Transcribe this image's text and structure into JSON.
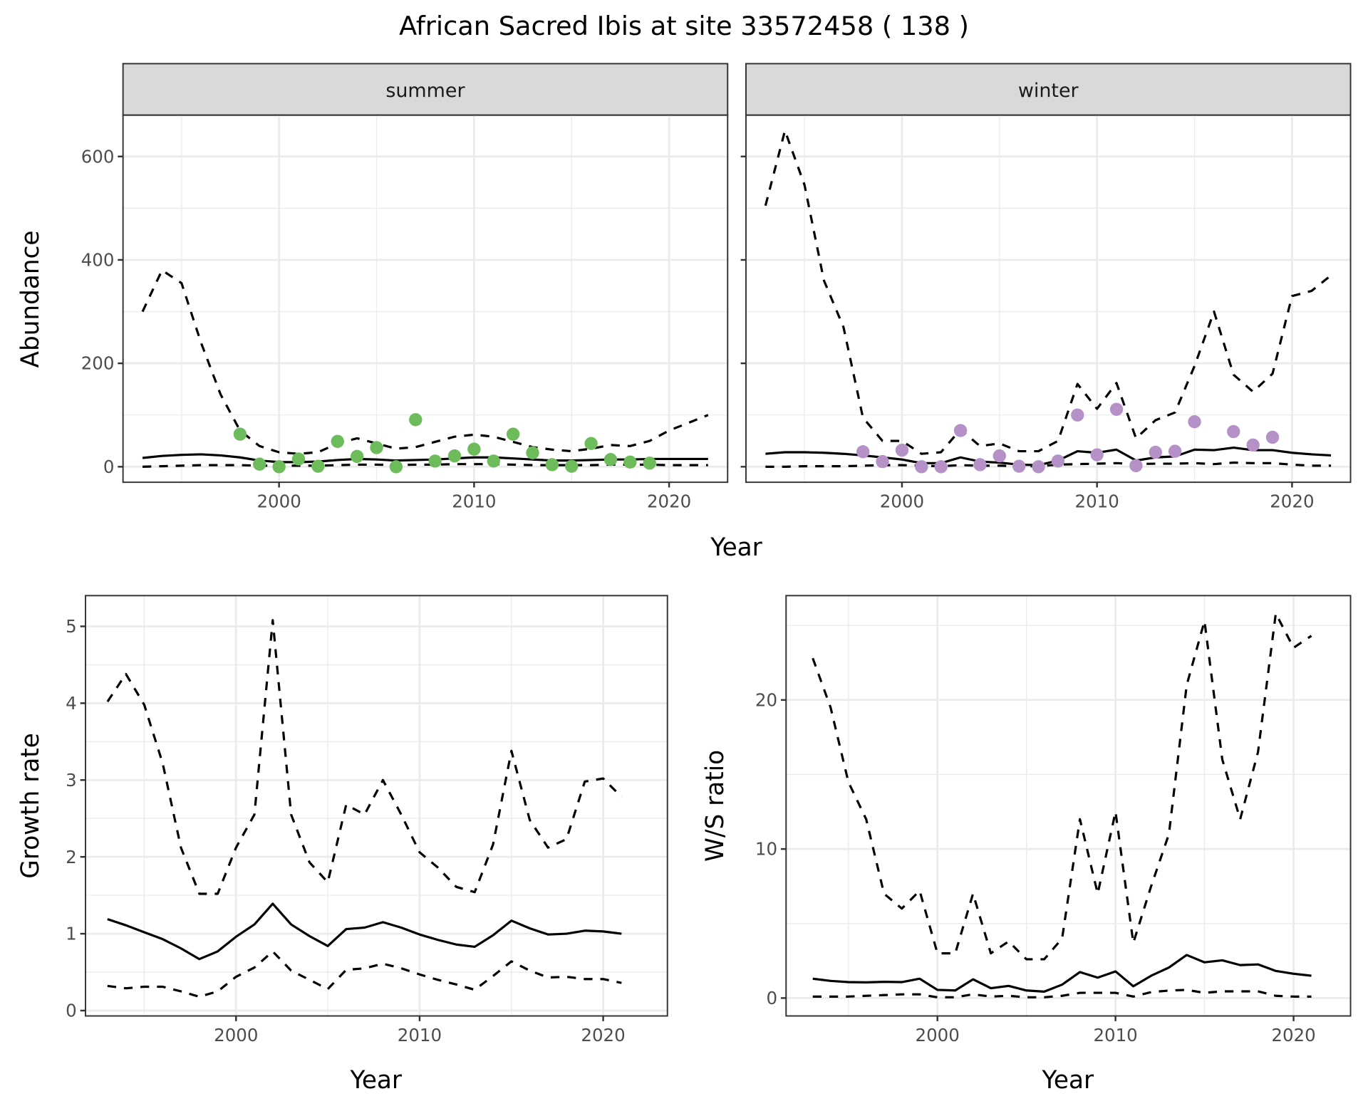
{
  "chart_data": {
    "title": "African Sacred Ibis at site 33572458 ( 138 )",
    "panels": [
      {
        "id": "abundance-summer",
        "type": "line+scatter",
        "strip": "summer",
        "xlabel": "Year",
        "ylabel": "Abundance",
        "xlim": [
          1992,
          2023
        ],
        "ylim": [
          -30,
          680
        ],
        "xticks": [
          2000,
          2010,
          2020
        ],
        "yticks": [
          0,
          200,
          400,
          600
        ],
        "grid": true,
        "point_color": "#6dbb5b",
        "series": {
          "mean": {
            "x": [
              1993,
              1994,
              1995,
              1996,
              1997,
              1998,
              1999,
              2000,
              2001,
              2002,
              2003,
              2004,
              2005,
              2006,
              2007,
              2008,
              2009,
              2010,
              2011,
              2012,
              2013,
              2014,
              2015,
              2016,
              2017,
              2018,
              2019,
              2020,
              2021,
              2022
            ],
            "y": [
              17,
              21,
              23,
              24,
              22,
              18,
              12,
              9,
              9,
              10,
              13,
              15,
              14,
              12,
              13,
              14,
              16,
              18,
              18,
              16,
              14,
              12,
              12,
              13,
              14,
              14,
              15,
              15,
              15,
              15
            ]
          },
          "upper": {
            "x": [
              1993,
              1994,
              1995,
              1996,
              1997,
              1998,
              1999,
              2000,
              2001,
              2002,
              2003,
              2004,
              2005,
              2006,
              2007,
              2008,
              2009,
              2010,
              2011,
              2012,
              2013,
              2014,
              2015,
              2016,
              2017,
              2018,
              2019,
              2020,
              2021,
              2022
            ],
            "y": [
              300,
              380,
              355,
              240,
              140,
              70,
              40,
              28,
              25,
              28,
              45,
              55,
              45,
              35,
              38,
              48,
              58,
              62,
              58,
              48,
              38,
              33,
              30,
              35,
              42,
              40,
              50,
              70,
              85,
              100
            ]
          },
          "lower": {
            "x": [
              1993,
              1994,
              1995,
              1996,
              1997,
              1998,
              1999,
              2000,
              2001,
              2002,
              2003,
              2004,
              2005,
              2006,
              2007,
              2008,
              2009,
              2010,
              2011,
              2012,
              2013,
              2014,
              2015,
              2016,
              2017,
              2018,
              2019,
              2020,
              2021,
              2022
            ],
            "y": [
              0,
              1,
              2,
              3,
              3,
              3,
              2,
              2,
              2,
              2,
              3,
              4,
              4,
              3,
              4,
              4,
              5,
              5,
              5,
              4,
              3,
              3,
              3,
              3,
              4,
              4,
              4,
              3,
              3,
              3
            ]
          },
          "observed": {
            "x": [
              1998,
              1999,
              2000,
              2001,
              2002,
              2003,
              2004,
              2005,
              2006,
              2007,
              2008,
              2009,
              2010,
              2011,
              2012,
              2013,
              2014,
              2015,
              2016,
              2017,
              2018,
              2019
            ],
            "y": [
              63,
              5,
              0,
              15,
              1,
              49,
              20,
              37,
              0,
              91,
              11,
              21,
              34,
              11,
              63,
              27,
              4,
              1,
              45,
              14,
              9,
              7
            ]
          }
        }
      },
      {
        "id": "abundance-winter",
        "type": "line+scatter",
        "strip": "winter",
        "xlabel": "Year",
        "ylabel": "Abundance",
        "xlim": [
          1992,
          2023
        ],
        "ylim": [
          -30,
          680
        ],
        "xticks": [
          2000,
          2010,
          2020
        ],
        "yticks": [
          0,
          200,
          400,
          600
        ],
        "grid": true,
        "point_color": "#b591c8",
        "series": {
          "mean": {
            "x": [
              1993,
              1994,
              1995,
              1996,
              1997,
              1998,
              1999,
              2000,
              2001,
              2002,
              2003,
              2004,
              2005,
              2006,
              2007,
              2008,
              2009,
              2010,
              2011,
              2012,
              2013,
              2014,
              2015,
              2016,
              2017,
              2018,
              2019,
              2020,
              2021,
              2022
            ],
            "y": [
              25,
              28,
              28,
              27,
              25,
              22,
              18,
              14,
              7,
              7,
              18,
              10,
              8,
              4,
              3,
              12,
              30,
              27,
              33,
              12,
              18,
              20,
              33,
              32,
              37,
              32,
              32,
              27,
              24,
              22
            ]
          },
          "upper": {
            "x": [
              1993,
              1994,
              1995,
              1996,
              1997,
              1998,
              1999,
              2000,
              2001,
              2002,
              2003,
              2004,
              2005,
              2006,
              2007,
              2008,
              2009,
              2010,
              2011,
              2012,
              2013,
              2014,
              2015,
              2016,
              2017,
              2018,
              2019,
              2020,
              2021,
              2022
            ],
            "y": [
              505,
              650,
              545,
              360,
              270,
              95,
              50,
              50,
              25,
              28,
              72,
              40,
              45,
              30,
              30,
              50,
              160,
              112,
              162,
              55,
              90,
              105,
              195,
              300,
              178,
              145,
              180,
              330,
              340,
              370
            ]
          },
          "lower": {
            "x": [
              1993,
              1994,
              1995,
              1996,
              1997,
              1998,
              1999,
              2000,
              2001,
              2002,
              2003,
              2004,
              2005,
              2006,
              2007,
              2008,
              2009,
              2010,
              2011,
              2012,
              2013,
              2014,
              2015,
              2016,
              2017,
              2018,
              2019,
              2020,
              2021,
              2022
            ],
            "y": [
              0,
              0,
              1,
              1,
              1,
              2,
              3,
              3,
              2,
              1,
              3,
              2,
              2,
              1,
              1,
              4,
              5,
              6,
              7,
              5,
              6,
              6,
              7,
              5,
              8,
              7,
              7,
              4,
              2,
              2
            ]
          },
          "observed": {
            "x": [
              1998,
              1999,
              2000,
              2001,
              2002,
              2003,
              2004,
              2005,
              2006,
              2007,
              2008,
              2009,
              2010,
              2011,
              2012,
              2013,
              2014,
              2015,
              2017,
              2018,
              2019
            ],
            "y": [
              29,
              10,
              32,
              0,
              0,
              70,
              4,
              21,
              1,
              0,
              11,
              100,
              23,
              111,
              2,
              28,
              30,
              87,
              68,
              42,
              57
            ]
          }
        }
      },
      {
        "id": "growth-rate",
        "type": "line",
        "xlabel": "Year",
        "ylabel": "Growth rate",
        "xlim": [
          1991.8,
          2023.5
        ],
        "ylim": [
          -0.07,
          5.4
        ],
        "xticks": [
          2000,
          2010,
          2020
        ],
        "yticks": [
          0,
          1,
          2,
          3,
          4,
          5
        ],
        "grid": true,
        "series": {
          "mean": {
            "x": [
              1993,
              1994,
              1995,
              1996,
              1997,
              1998,
              1999,
              2000,
              2001,
              2002,
              2003,
              2004,
              2005,
              2006,
              2007,
              2008,
              2009,
              2010,
              2011,
              2012,
              2013,
              2014,
              2015,
              2016,
              2017,
              2018,
              2019,
              2020,
              2021
            ],
            "y": [
              1.19,
              1.11,
              1.02,
              0.93,
              0.81,
              0.67,
              0.77,
              0.96,
              1.12,
              1.39,
              1.12,
              0.97,
              0.84,
              1.06,
              1.08,
              1.15,
              1.08,
              0.99,
              0.92,
              0.86,
              0.83,
              0.98,
              1.17,
              1.07,
              0.99,
              1.0,
              1.04,
              1.03,
              1.0
            ]
          },
          "upper": {
            "x": [
              1993,
              1994,
              1995,
              1996,
              1997,
              1998,
              1999,
              2000,
              2001,
              2002,
              2003,
              2004,
              2005,
              2006,
              2007,
              2008,
              2009,
              2010,
              2011,
              2012,
              2013,
              2014,
              2015,
              2016,
              2017,
              2018,
              2019,
              2020,
              2021
            ],
            "y": [
              4.02,
              4.38,
              3.98,
              3.22,
              2.12,
              1.52,
              1.52,
              2.12,
              2.55,
              5.08,
              2.55,
              1.93,
              1.67,
              2.68,
              2.55,
              3.0,
              2.55,
              2.06,
              1.86,
              1.61,
              1.54,
              2.16,
              3.38,
              2.48,
              2.12,
              2.23,
              2.98,
              3.02,
              2.78
            ]
          },
          "lower": {
            "x": [
              1993,
              1994,
              1995,
              1996,
              1997,
              1998,
              1999,
              2000,
              2001,
              2002,
              2003,
              2004,
              2005,
              2006,
              2007,
              2008,
              2009,
              2010,
              2011,
              2012,
              2013,
              2014,
              2015,
              2016,
              2017,
              2018,
              2019,
              2020,
              2021
            ],
            "y": [
              0.32,
              0.29,
              0.31,
              0.31,
              0.25,
              0.18,
              0.25,
              0.44,
              0.56,
              0.77,
              0.52,
              0.4,
              0.28,
              0.53,
              0.55,
              0.61,
              0.55,
              0.47,
              0.4,
              0.34,
              0.27,
              0.45,
              0.64,
              0.52,
              0.43,
              0.44,
              0.41,
              0.41,
              0.36
            ]
          }
        }
      },
      {
        "id": "ws-ratio",
        "type": "line",
        "xlabel": "Year",
        "ylabel": "W/S ratio",
        "xlim": [
          1991.5,
          2023.2
        ],
        "ylim": [
          -1.2,
          27
        ],
        "xticks": [
          2000,
          2010,
          2020
        ],
        "yticks": [
          0,
          10,
          20
        ],
        "grid": true,
        "series": {
          "mean": {
            "x": [
              1993,
              1994,
              1995,
              1996,
              1997,
              1998,
              1999,
              2000,
              2001,
              2002,
              2003,
              2004,
              2005,
              2006,
              2007,
              2008,
              2009,
              2010,
              2011,
              2012,
              2013,
              2014,
              2015,
              2016,
              2017,
              2018,
              2019,
              2020,
              2021
            ],
            "y": [
              1.3,
              1.15,
              1.07,
              1.05,
              1.09,
              1.07,
              1.3,
              0.55,
              0.51,
              1.26,
              0.66,
              0.82,
              0.51,
              0.43,
              0.9,
              1.74,
              1.37,
              1.79,
              0.79,
              1.5,
              2.05,
              2.89,
              2.4,
              2.53,
              2.21,
              2.26,
              1.82,
              1.63,
              1.5
            ]
          },
          "upper": {
            "x": [
              1993,
              1994,
              1995,
              1996,
              1997,
              1998,
              1999,
              2000,
              2001,
              2002,
              2003,
              2004,
              2005,
              2006,
              2007,
              2008,
              2009,
              2010,
              2011,
              2012,
              2013,
              2014,
              2015,
              2016,
              2017,
              2018,
              2019,
              2020,
              2021
            ],
            "y": [
              22.8,
              19.5,
              14.5,
              12.0,
              7.0,
              6.0,
              7.2,
              3.0,
              3.0,
              7.0,
              3.0,
              3.8,
              2.6,
              2.6,
              4.0,
              12.0,
              7.0,
              12.5,
              3.7,
              7.5,
              11.0,
              21.0,
              25.3,
              16.0,
              12.0,
              16.5,
              25.8,
              23.5,
              24.3
            ]
          },
          "lower": {
            "x": [
              1993,
              1994,
              1995,
              1996,
              1997,
              1998,
              1999,
              2000,
              2001,
              2002,
              2003,
              2004,
              2005,
              2006,
              2007,
              2008,
              2009,
              2010,
              2011,
              2012,
              2013,
              2014,
              2015,
              2016,
              2017,
              2018,
              2019,
              2020,
              2021
            ],
            "y": [
              0.1,
              0.1,
              0.1,
              0.15,
              0.2,
              0.25,
              0.25,
              0.05,
              0.05,
              0.25,
              0.1,
              0.15,
              0.05,
              0.05,
              0.15,
              0.35,
              0.35,
              0.35,
              0.1,
              0.4,
              0.5,
              0.55,
              0.35,
              0.45,
              0.45,
              0.45,
              0.15,
              0.1,
              0.1
            ]
          }
        }
      }
    ]
  },
  "labels": {
    "title": "African Sacred Ibis at site 33572458 ( 138 )",
    "strip_summer": "summer",
    "strip_winter": "winter",
    "abundance_ylabel": "Abundance",
    "abundance_xlabel": "Year",
    "growth_ylabel": "Growth rate",
    "growth_xlabel": "Year",
    "ws_ylabel": "W/S ratio",
    "ws_xlabel": "Year"
  }
}
